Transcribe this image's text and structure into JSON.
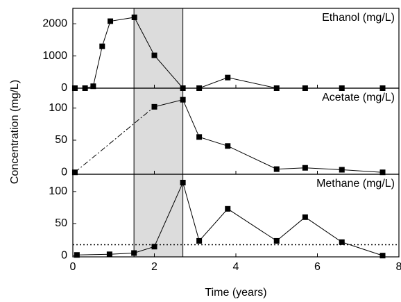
{
  "figure": {
    "x_label": "Time (years)",
    "y_label": "Concentration (mg/L)",
    "xlim": [
      0,
      8
    ],
    "xticks": [
      0,
      2,
      4,
      6,
      8
    ],
    "shaded_xrange": [
      1.5,
      2.7
    ]
  },
  "chart_data": [
    {
      "type": "line",
      "title": "Ethanol (mg/L)",
      "color": "#000000",
      "x": [
        0.05,
        0.3,
        0.5,
        0.72,
        0.92,
        1.51,
        2.0,
        2.7,
        3.1,
        3.8,
        5.0,
        5.7,
        6.6,
        7.6
      ],
      "values": [
        0,
        0,
        60,
        1300,
        2080,
        2200,
        1020,
        0,
        0,
        330,
        0,
        0,
        0,
        0
      ],
      "ylim": [
        0,
        2480
      ],
      "yticks": [
        0,
        1000,
        2000
      ]
    },
    {
      "type": "line",
      "title": "Acetate (mg/L)",
      "color": "#000000",
      "dashdot_until_index": 1,
      "x": [
        0.05,
        2.0,
        2.7,
        3.1,
        3.8,
        5.0,
        5.7,
        6.6,
        7.6
      ],
      "values": [
        0,
        102,
        113,
        55,
        41,
        5,
        7,
        4,
        0
      ],
      "ylim": [
        -3,
        131
      ],
      "yticks": [
        0,
        50,
        100
      ]
    },
    {
      "type": "line",
      "title": "Methane (mg/L)",
      "color": "#000000",
      "reference_line": 17,
      "x": [
        0.1,
        0.9,
        1.5,
        2.0,
        2.7,
        3.1,
        3.8,
        5.0,
        5.7,
        6.6,
        7.6
      ],
      "values": [
        1,
        2,
        4,
        14,
        114,
        23,
        73,
        23,
        60,
        21,
        0
      ],
      "ylim": [
        -2,
        127
      ],
      "yticks": [
        0,
        50,
        100
      ]
    }
  ]
}
